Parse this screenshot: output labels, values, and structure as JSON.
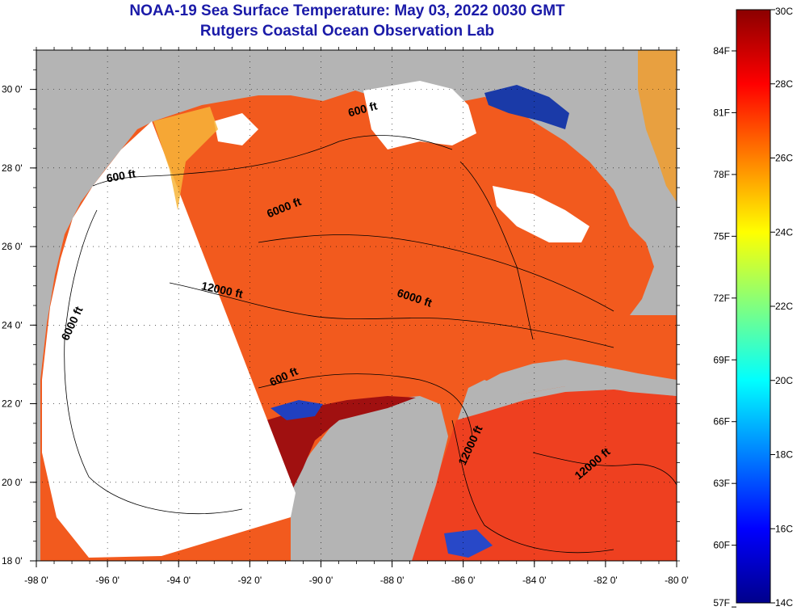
{
  "title": {
    "line1": "NOAA-19 Sea Surface Temperature:  May 03, 2022 0030 GMT",
    "line2": "Rutgers Coastal Ocean Observation Lab"
  },
  "map": {
    "lon_ticks": [
      {
        "value": -98,
        "label": "-98 0'"
      },
      {
        "value": -96,
        "label": "-96 0'"
      },
      {
        "value": -94,
        "label": "-94 0'"
      },
      {
        "value": -92,
        "label": "-92 0'"
      },
      {
        "value": -90,
        "label": "-90 0'"
      },
      {
        "value": -88,
        "label": "-88 0'"
      },
      {
        "value": -86,
        "label": "-86 0'"
      },
      {
        "value": -84,
        "label": "-84 0'"
      },
      {
        "value": -82,
        "label": "-82 0'"
      },
      {
        "value": -80,
        "label": "-80 0'"
      }
    ],
    "lat_ticks": [
      {
        "value": 18,
        "label": "18 0'"
      },
      {
        "value": 20,
        "label": "20 0'"
      },
      {
        "value": 22,
        "label": "22 0'"
      },
      {
        "value": 24,
        "label": "24 0'"
      },
      {
        "value": 26,
        "label": "26 0'"
      },
      {
        "value": 28,
        "label": "28 0'"
      },
      {
        "value": 30,
        "label": "30 0'"
      }
    ],
    "contour_labels": [
      {
        "text": "600 ft",
        "lon": -95.6,
        "lat": 27.7,
        "angle": -10
      },
      {
        "text": "600 ft",
        "lon": -88.8,
        "lat": 29.4,
        "angle": -15
      },
      {
        "text": "6000 ft",
        "lon": -91.0,
        "lat": 26.9,
        "angle": -22
      },
      {
        "text": "12000 ft",
        "lon": -92.8,
        "lat": 24.8,
        "angle": 12
      },
      {
        "text": "6000 ft",
        "lon": -96.9,
        "lat": 24.0,
        "angle": -65
      },
      {
        "text": "6000 ft",
        "lon": -87.4,
        "lat": 24.6,
        "angle": 18
      },
      {
        "text": "600 ft",
        "lon": -91.0,
        "lat": 22.6,
        "angle": -25
      },
      {
        "text": "12000 ft",
        "lon": -85.7,
        "lat": 20.9,
        "angle": -65
      },
      {
        "text": "12000 ft",
        "lon": -82.3,
        "lat": 20.4,
        "angle": -40
      }
    ]
  },
  "colorbar": {
    "celsius_labels": [
      "30C",
      "28C",
      "26C",
      "24C",
      "22C",
      "20C",
      "18C",
      "16C",
      "14C"
    ],
    "fahrenheit_labels": [
      {
        "value": 84,
        "label": "84F"
      },
      {
        "value": 81,
        "label": "81F"
      },
      {
        "value": 78,
        "label": "78F"
      },
      {
        "value": 75,
        "label": "75F"
      },
      {
        "value": 72,
        "label": "72F"
      },
      {
        "value": 69,
        "label": "69F"
      },
      {
        "value": 66,
        "label": "66F"
      },
      {
        "value": 63,
        "label": "63F"
      },
      {
        "value": 60,
        "label": "60F"
      },
      {
        "value": 57,
        "label": "57F"
      }
    ],
    "c_min": 14,
    "c_max": 30
  }
}
